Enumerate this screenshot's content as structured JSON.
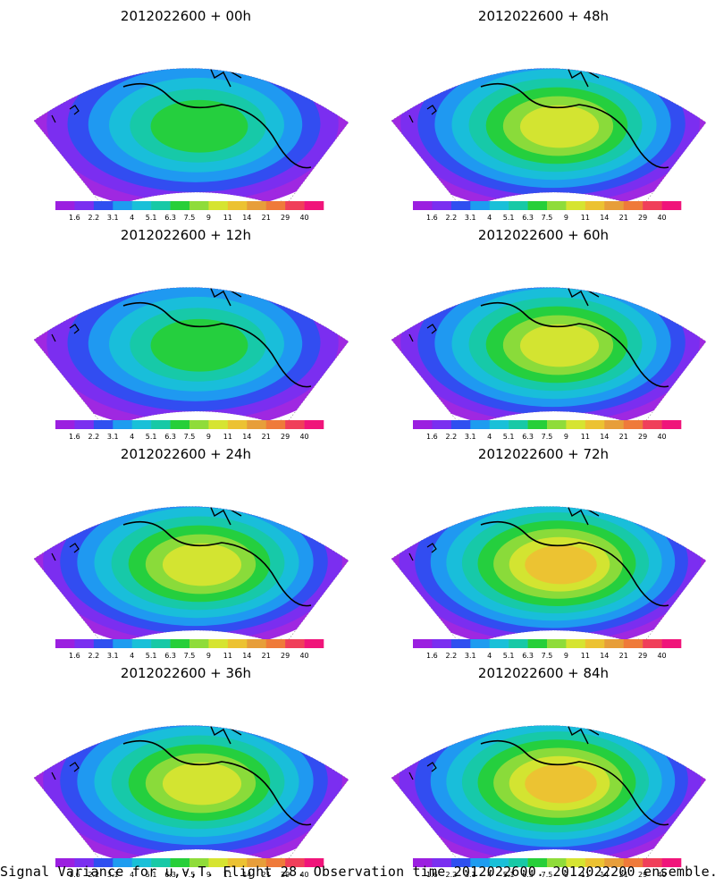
{
  "figure": {
    "caption": "Signal Variance for u,v,T. Flight 28. Observation time 2012022600. 2012022200 ensemble.",
    "panels": [
      {
        "title": "2012022600  + 00h",
        "lead_hours": 0
      },
      {
        "title": "2012022600  + 48h",
        "lead_hours": 48
      },
      {
        "title": "2012022600  + 12h",
        "lead_hours": 12
      },
      {
        "title": "2012022600  + 60h",
        "lead_hours": 60
      },
      {
        "title": "2012022600  + 24h",
        "lead_hours": 24
      },
      {
        "title": "2012022600  + 72h",
        "lead_hours": 72
      },
      {
        "title": "2012022600  + 36h",
        "lead_hours": 36
      },
      {
        "title": "2012022600  + 84h",
        "lead_hours": 84
      }
    ],
    "colorbar": {
      "ticks": [
        "1.6",
        "2.2",
        "3.1",
        "4",
        "5.1",
        "6.3",
        "7.5",
        "9",
        "11",
        "14",
        "21",
        "29",
        "40"
      ],
      "colors": [
        "#9b1fe0",
        "#7a2ff0",
        "#2f4ff0",
        "#1e9cf0",
        "#19c0d8",
        "#17c9a6",
        "#27cf39",
        "#8fdc3a",
        "#d6e431",
        "#ecc232",
        "#e79e3a",
        "#ef7a3a",
        "#f03f5a",
        "#f0147a"
      ]
    }
  }
}
